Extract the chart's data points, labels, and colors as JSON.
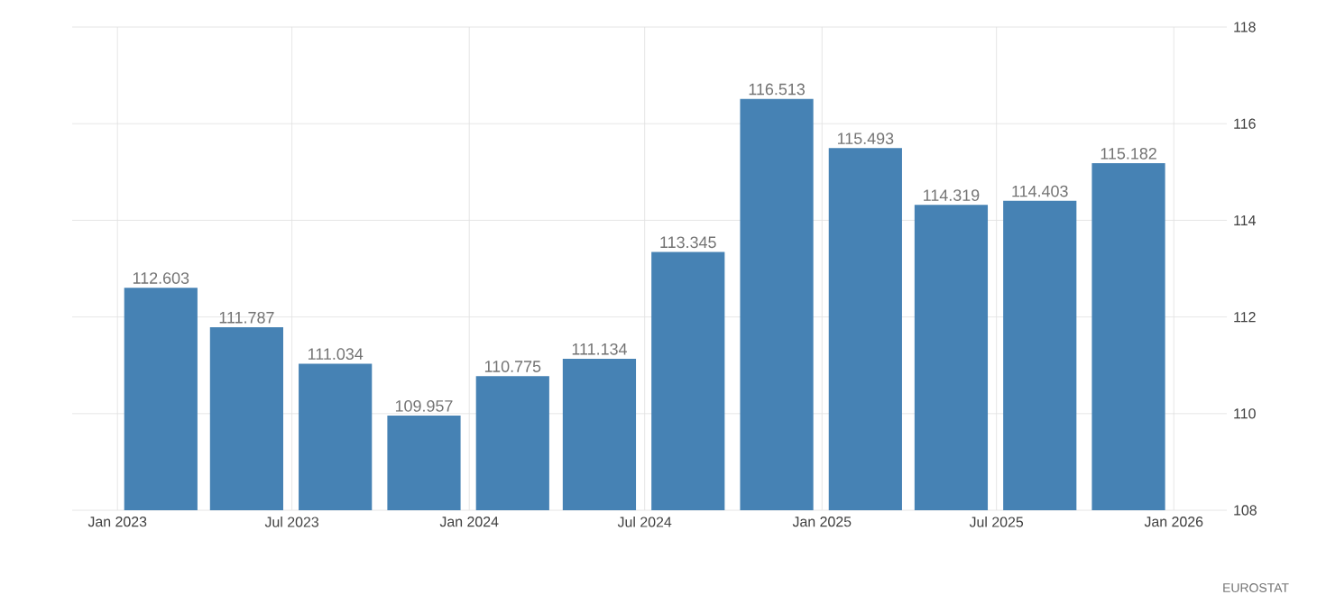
{
  "chart_data": {
    "type": "bar",
    "x": [
      "2023-02-15",
      "2023-05-15",
      "2023-08-15",
      "2023-11-15",
      "2024-02-15",
      "2024-05-15",
      "2024-08-15",
      "2024-11-15",
      "2025-02-15",
      "2025-05-15",
      "2025-08-15",
      "2025-11-15"
    ],
    "values": [
      112.603,
      111.787,
      111.034,
      109.957,
      110.775,
      111.134,
      113.345,
      116.513,
      115.493,
      114.319,
      114.403,
      115.182
    ],
    "color": "#4682b4",
    "data_labels": true,
    "xlim": [
      "2022-11-15",
      "2026-02-25"
    ],
    "xticks": [
      {
        "value": "2023-01",
        "label": "Jan 2023"
      },
      {
        "value": "2023-07",
        "label": "Jul 2023"
      },
      {
        "value": "2024-01",
        "label": "Jan 2024"
      },
      {
        "value": "2024-07",
        "label": "Jul 2024"
      },
      {
        "value": "2025-01",
        "label": "Jan 2025"
      },
      {
        "value": "2025-07",
        "label": "Jul 2025"
      },
      {
        "value": "2026-01",
        "label": "Jan 2026"
      }
    ],
    "ylim": [
      108,
      118
    ],
    "yticks": [
      108,
      110,
      112,
      114,
      116,
      118
    ],
    "grid": true,
    "annotations": [
      "EUROSTAT"
    ]
  }
}
